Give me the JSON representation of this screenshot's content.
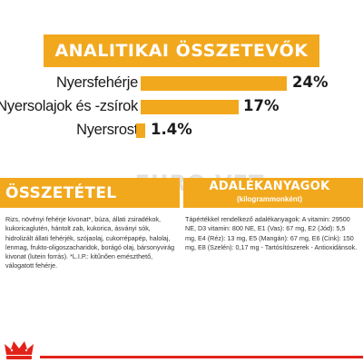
{
  "banner": {
    "title": "ANALITIKAI ÖSSZETEVŐK"
  },
  "nutrients": [
    {
      "label": "Nyersfehérje",
      "value": "24%",
      "percent": 24
    },
    {
      "label": "Nyersolajok és -zsírok",
      "value": "17%",
      "percent": 17
    },
    {
      "label": "Nyersrost",
      "value": "1.4%",
      "percent": 1.4
    }
  ],
  "watermark": "EURO-VET",
  "composition": {
    "title": "ÖSSZETÉTEL",
    "text": "Rizs, növényi fehérje kivonat*, búza, állati zsiradékok, kukoricaglutén, hántolt zab, kukorica, ásványi sók, hidrolizált állati fehérjék, szójaolaj, cukorrépapép, halolaj, lenmag, frukto-oligoszacharidok, borágó olaj, bársonyvirág kivonat (lutein forrás). *L.I.P.: kitűnően emészthető, válogatott fehérje."
  },
  "additives": {
    "title": "ADALÉKANYAGOK",
    "subtitle": "(kilogrammonként)",
    "text": "Tápértékkel rendelkező adalékanyagok: A vitamin: 29500 NE, D3 vitamin: 800 NE, E1 (Vas): 67 mg, E2 (Jód): 5,5 mg, E4 (Réz): 13 mg, E5 (Mangán): 67 mg, E6 (Cink): 150 mg, E8 (Szelén): 0,17 mg - Tartósítószerek - Antioxidánsok."
  },
  "brand": {
    "logo_icon": "royal-canin-crown-icon",
    "accent_color": "#e2231a",
    "primary_color": "#f2a81d"
  }
}
